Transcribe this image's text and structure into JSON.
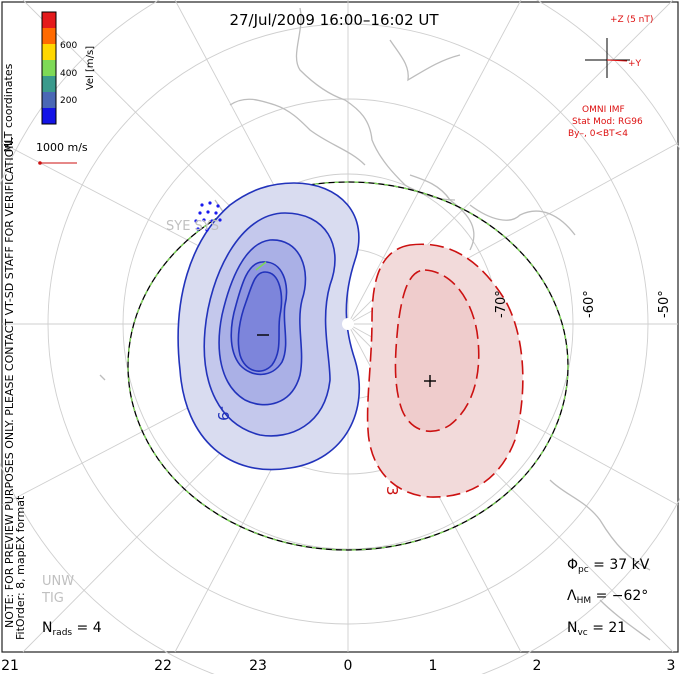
{
  "title": "27/Jul/2009 16:00–16:02 UT",
  "colorbar": {
    "unit_label": "Vel [m/s]",
    "ticks": [
      "600",
      "400",
      "200"
    ],
    "colors": [
      "#e41a1c",
      "#ff6a00",
      "#ffd700",
      "#7ed957",
      "#3a9a8c",
      "#4a68b5",
      "#1414e6"
    ]
  },
  "side_labels": {
    "mlt_coordinates": "MLT coordinates",
    "note": "NOTE: FOR PREVIEW PURPOSES ONLY. PLEASE CONTACT VT-SD STAFF FOR VERIFICATION.",
    "fit": "FitOrder: 8, mapEX format"
  },
  "scale_vector": {
    "label": "1000 m/s"
  },
  "imf": {
    "plus_z": "+Z (5 nT)",
    "plus_y": "+Y",
    "omni": "OMNI IMF",
    "stat_mod": "Stat Mod: RG96",
    "by_bt": "By–, 0<BT<4"
  },
  "latitudes": [
    "-70°",
    "-60°",
    "-50°"
  ],
  "contour_labels": {
    "neg": "-9",
    "pos": "3"
  },
  "cell_markers": {
    "min": "−",
    "max": "+"
  },
  "stations": {
    "sye_sys": "SYE SYS",
    "unw_tig": "UNW TIG"
  },
  "stats": {
    "n_rads_label": "N",
    "n_rads_sub": "rads",
    "n_rads_value": " = 4",
    "phi_label": "Φ",
    "phi_sub": "pc",
    "phi_value": " = 37 kV",
    "lambda_label": "Λ",
    "lambda_sub": "HM",
    "lambda_value": " = −62°",
    "nvc_label": "N",
    "nvc_sub": "vc",
    "nvc_value": " = 21"
  },
  "mlt_axis": [
    "21",
    "22",
    "23",
    "0",
    "1",
    "2",
    "3"
  ],
  "colors": {
    "neg_cell": "#2233bb",
    "pos_cell": "#cc1111",
    "grid": "#c8c8c8",
    "coast": "#bdbdbd",
    "hm_boundary": "#7ed957",
    "imf": "#dd1111"
  }
}
